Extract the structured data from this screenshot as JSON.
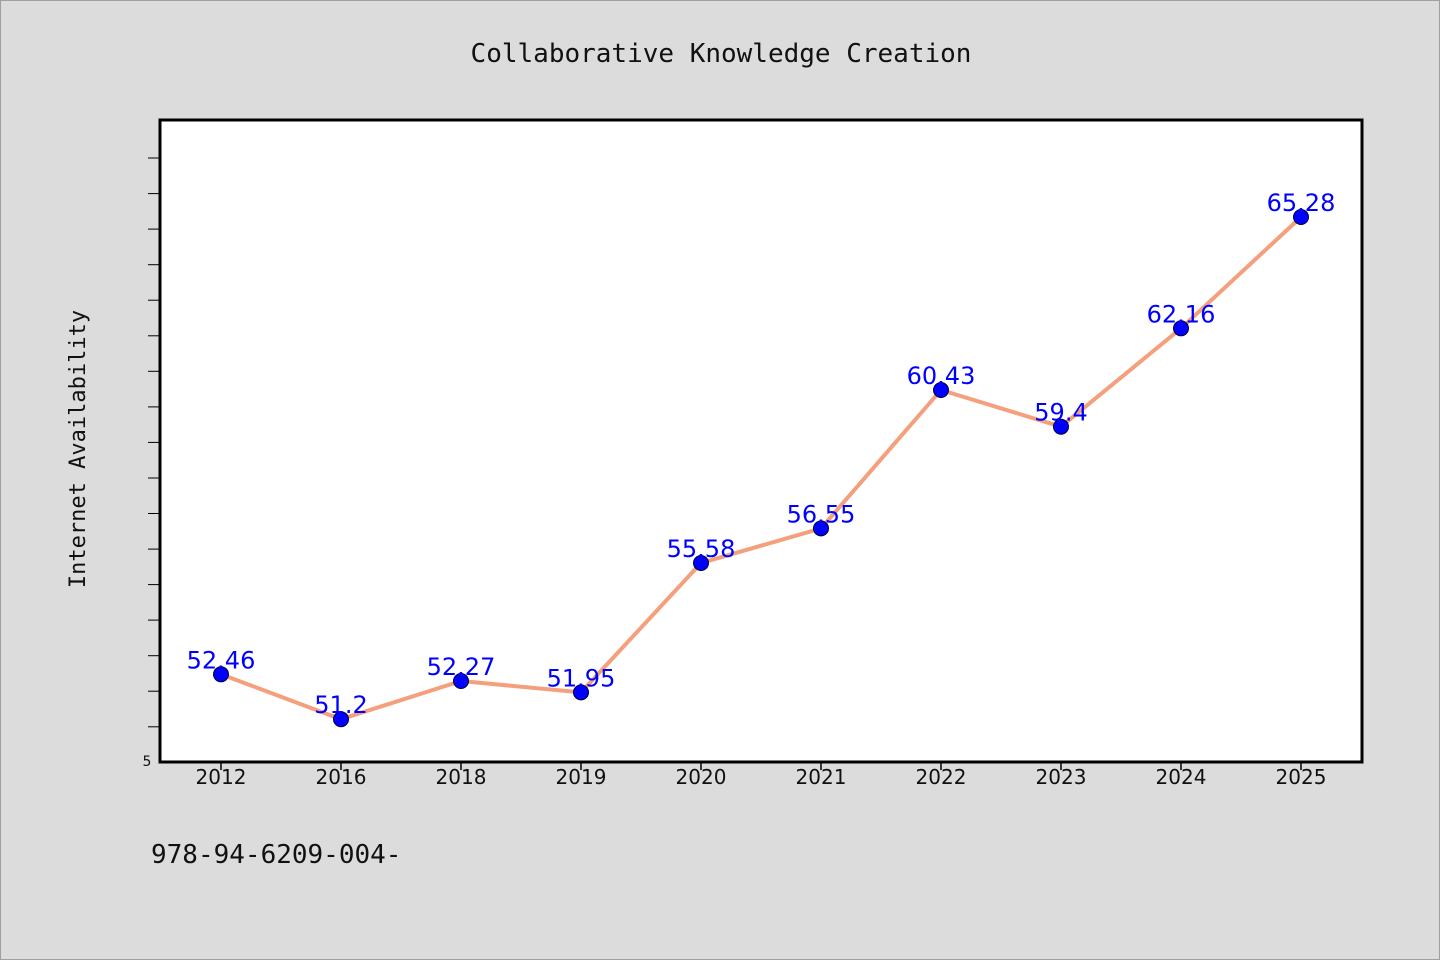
{
  "title": "Collaborative Knowledge Creation",
  "footer_text": "978-94-6209-004-",
  "chart_data": {
    "type": "line",
    "title": "Collaborative Knowledge Creation",
    "xlabel": "",
    "ylabel": "Internet Availability",
    "categories": [
      "2012",
      "2016",
      "2018",
      "2019",
      "2020",
      "2021",
      "2022",
      "2023",
      "2024",
      "2025"
    ],
    "series": [
      {
        "values": [
          52.46,
          51.2,
          52.27,
          51.95,
          55.58,
          56.55,
          60.43,
          59.4,
          62.16,
          65.28
        ],
        "data_labels": [
          "52.46",
          "51.2",
          "52.27",
          "51.95",
          "55.58",
          "56.55",
          "60.43",
          "59.4",
          "62.16",
          "65.28"
        ]
      }
    ],
    "y_tick_labels": [
      "5"
    ],
    "ylim": [
      50.0,
      68.0
    ],
    "grid": false,
    "legend": "none",
    "line_color": "#f4a07c",
    "marker_color": "#0000ff",
    "label_color": "#0000ff"
  }
}
